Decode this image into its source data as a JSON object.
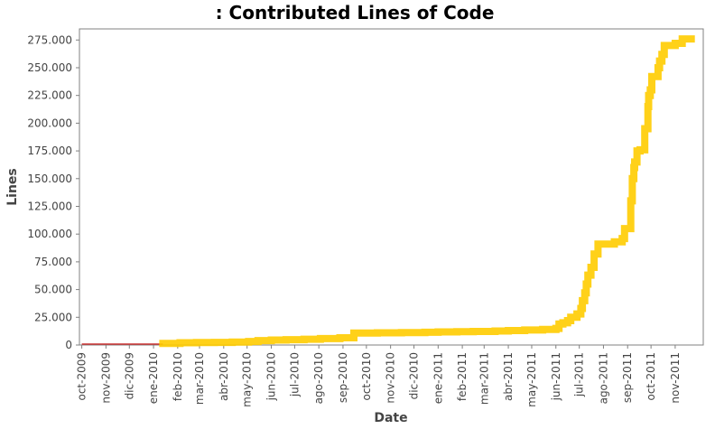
{
  "chart_data": {
    "type": "line",
    "title": ": Contributed Lines of Code",
    "xlabel": "Date",
    "ylabel": "Lines",
    "ylim": [
      0,
      285000
    ],
    "xlim": [
      "2009-09-28",
      "2011-12-07"
    ],
    "grid": false,
    "y_ticks": [
      0,
      25000,
      50000,
      75000,
      100000,
      125000,
      150000,
      175000,
      200000,
      225000,
      250000,
      275000
    ],
    "y_tick_labels": [
      "0",
      "25.000",
      "50.000",
      "75.000",
      "100.000",
      "125.000",
      "150.000",
      "175.000",
      "200.000",
      "225.000",
      "250.000",
      "275.000"
    ],
    "x_ticks": [
      "2009-10-01",
      "2009-11-01",
      "2009-12-01",
      "2010-01-01",
      "2010-02-01",
      "2010-03-01",
      "2010-04-01",
      "2010-05-01",
      "2010-06-01",
      "2010-07-01",
      "2010-08-01",
      "2010-09-01",
      "2010-10-01",
      "2010-11-01",
      "2010-12-01",
      "2011-01-01",
      "2011-02-01",
      "2011-03-01",
      "2011-04-01",
      "2011-05-01",
      "2011-06-01",
      "2011-07-01",
      "2011-08-01",
      "2011-09-01",
      "2011-10-01",
      "2011-11-01"
    ],
    "x_tick_labels": [
      "oct-2009",
      "nov-2009",
      "dic-2009",
      "ene-2010",
      "feb-2010",
      "mar-2010",
      "abr-2010",
      "may-2010",
      "jun-2010",
      "jul-2010",
      "ago-2010",
      "sep-2010",
      "oct-2010",
      "nov-2010",
      "dic-2010",
      "ene-2011",
      "feb-2011",
      "mar-2011",
      "abr-2011",
      "may-2011",
      "jun-2011",
      "jul-2011",
      "ago-2011",
      "sep-2011",
      "oct-2011",
      "nov-2011"
    ],
    "colors": {
      "line": "#ffcc00",
      "baseline": "#cc3333"
    },
    "series": [
      {
        "x": [
          "2009-10-01",
          "2010-01-01",
          "2010-01-13",
          "2010-02-04",
          "2010-02-25",
          "2010-03-20",
          "2010-04-12",
          "2010-05-03",
          "2010-05-15",
          "2010-06-01",
          "2010-06-20",
          "2010-07-13",
          "2010-08-03",
          "2010-08-28",
          "2010-09-15",
          "2010-10-15",
          "2010-11-15",
          "2010-12-15",
          "2011-01-01",
          "2011-01-25",
          "2011-02-15",
          "2011-03-15",
          "2011-04-01",
          "2011-04-22",
          "2011-05-15",
          "2011-06-01",
          "2011-06-05",
          "2011-06-10",
          "2011-06-16",
          "2011-06-20",
          "2011-06-28",
          "2011-07-03",
          "2011-07-05",
          "2011-07-08",
          "2011-07-10",
          "2011-07-12",
          "2011-07-16",
          "2011-07-20",
          "2011-07-25",
          "2011-08-15",
          "2011-08-25",
          "2011-08-28",
          "2011-09-05",
          "2011-09-07",
          "2011-09-09",
          "2011-09-10",
          "2011-09-13",
          "2011-09-17",
          "2011-09-23",
          "2011-09-27",
          "2011-09-28",
          "2011-09-30",
          "2011-10-02",
          "2011-10-10",
          "2011-10-12",
          "2011-10-15",
          "2011-10-18",
          "2011-11-01",
          "2011-11-10"
        ],
        "y": [
          0,
          0,
          1500,
          2000,
          2200,
          2400,
          2700,
          3200,
          4000,
          4500,
          4800,
          5200,
          5800,
          6500,
          10800,
          11000,
          11200,
          11500,
          11800,
          12000,
          12200,
          12600,
          13000,
          13500,
          14000,
          15000,
          19000,
          20000,
          22000,
          25000,
          28000,
          33000,
          40000,
          47000,
          55000,
          63000,
          70000,
          82000,
          91000,
          93000,
          96000,
          105000,
          130000,
          150000,
          160000,
          165000,
          175000,
          176000,
          195000,
          215000,
          225000,
          230000,
          242000,
          250000,
          256000,
          262000,
          270000,
          272000,
          276000
        ]
      }
    ]
  }
}
